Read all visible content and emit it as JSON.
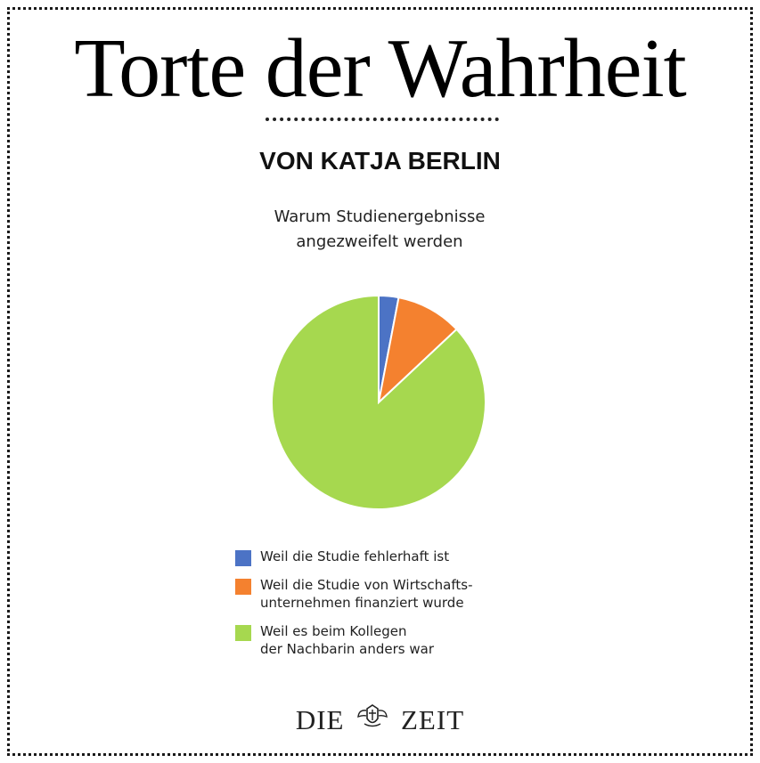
{
  "header": {
    "title": "Torte der Wahrheit",
    "byline": "VON KATJA BERLIN"
  },
  "chart_data": {
    "type": "pie",
    "title": "Warum Studienergebnisse\nangezweifelt werden",
    "slices": [
      {
        "label": "Weil die Studie fehlerhaft ist",
        "value": 3,
        "color": "#4c73c5"
      },
      {
        "label": "Weil die Studie von Wirtschafts-\nunternehmen finanziert wurde",
        "value": 10,
        "color": "#f4812f"
      },
      {
        "label": "Weil es beim Kollegen\nder Nachbarin anders war",
        "value": 87,
        "color": "#a6d84f"
      }
    ],
    "legend_position": "bottom"
  },
  "footer": {
    "logo_left": "DIE",
    "logo_right": "ZEIT"
  }
}
